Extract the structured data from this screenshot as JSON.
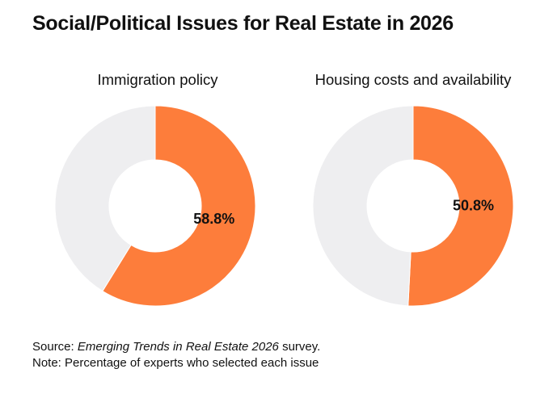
{
  "title": "Social/Political Issues for Real Estate in 2026",
  "source": {
    "prefix": "Source: ",
    "publication": "Emerging Trends in Real Estate 2026",
    "suffix": " survey.",
    "note": "Note: Percentage of experts who selected each issue"
  },
  "colors": {
    "accent": "#fd7d3b",
    "remainder": "#eeeef0",
    "hole": "#ffffff"
  },
  "chart_data": [
    {
      "type": "pie",
      "variant": "donut",
      "title": "Immigration policy",
      "values": [
        58.8,
        41.2
      ],
      "data_label": "58.8%"
    },
    {
      "type": "pie",
      "variant": "donut",
      "title": "Housing costs and availability",
      "values": [
        50.8,
        49.2
      ],
      "data_label": "50.8%"
    }
  ]
}
